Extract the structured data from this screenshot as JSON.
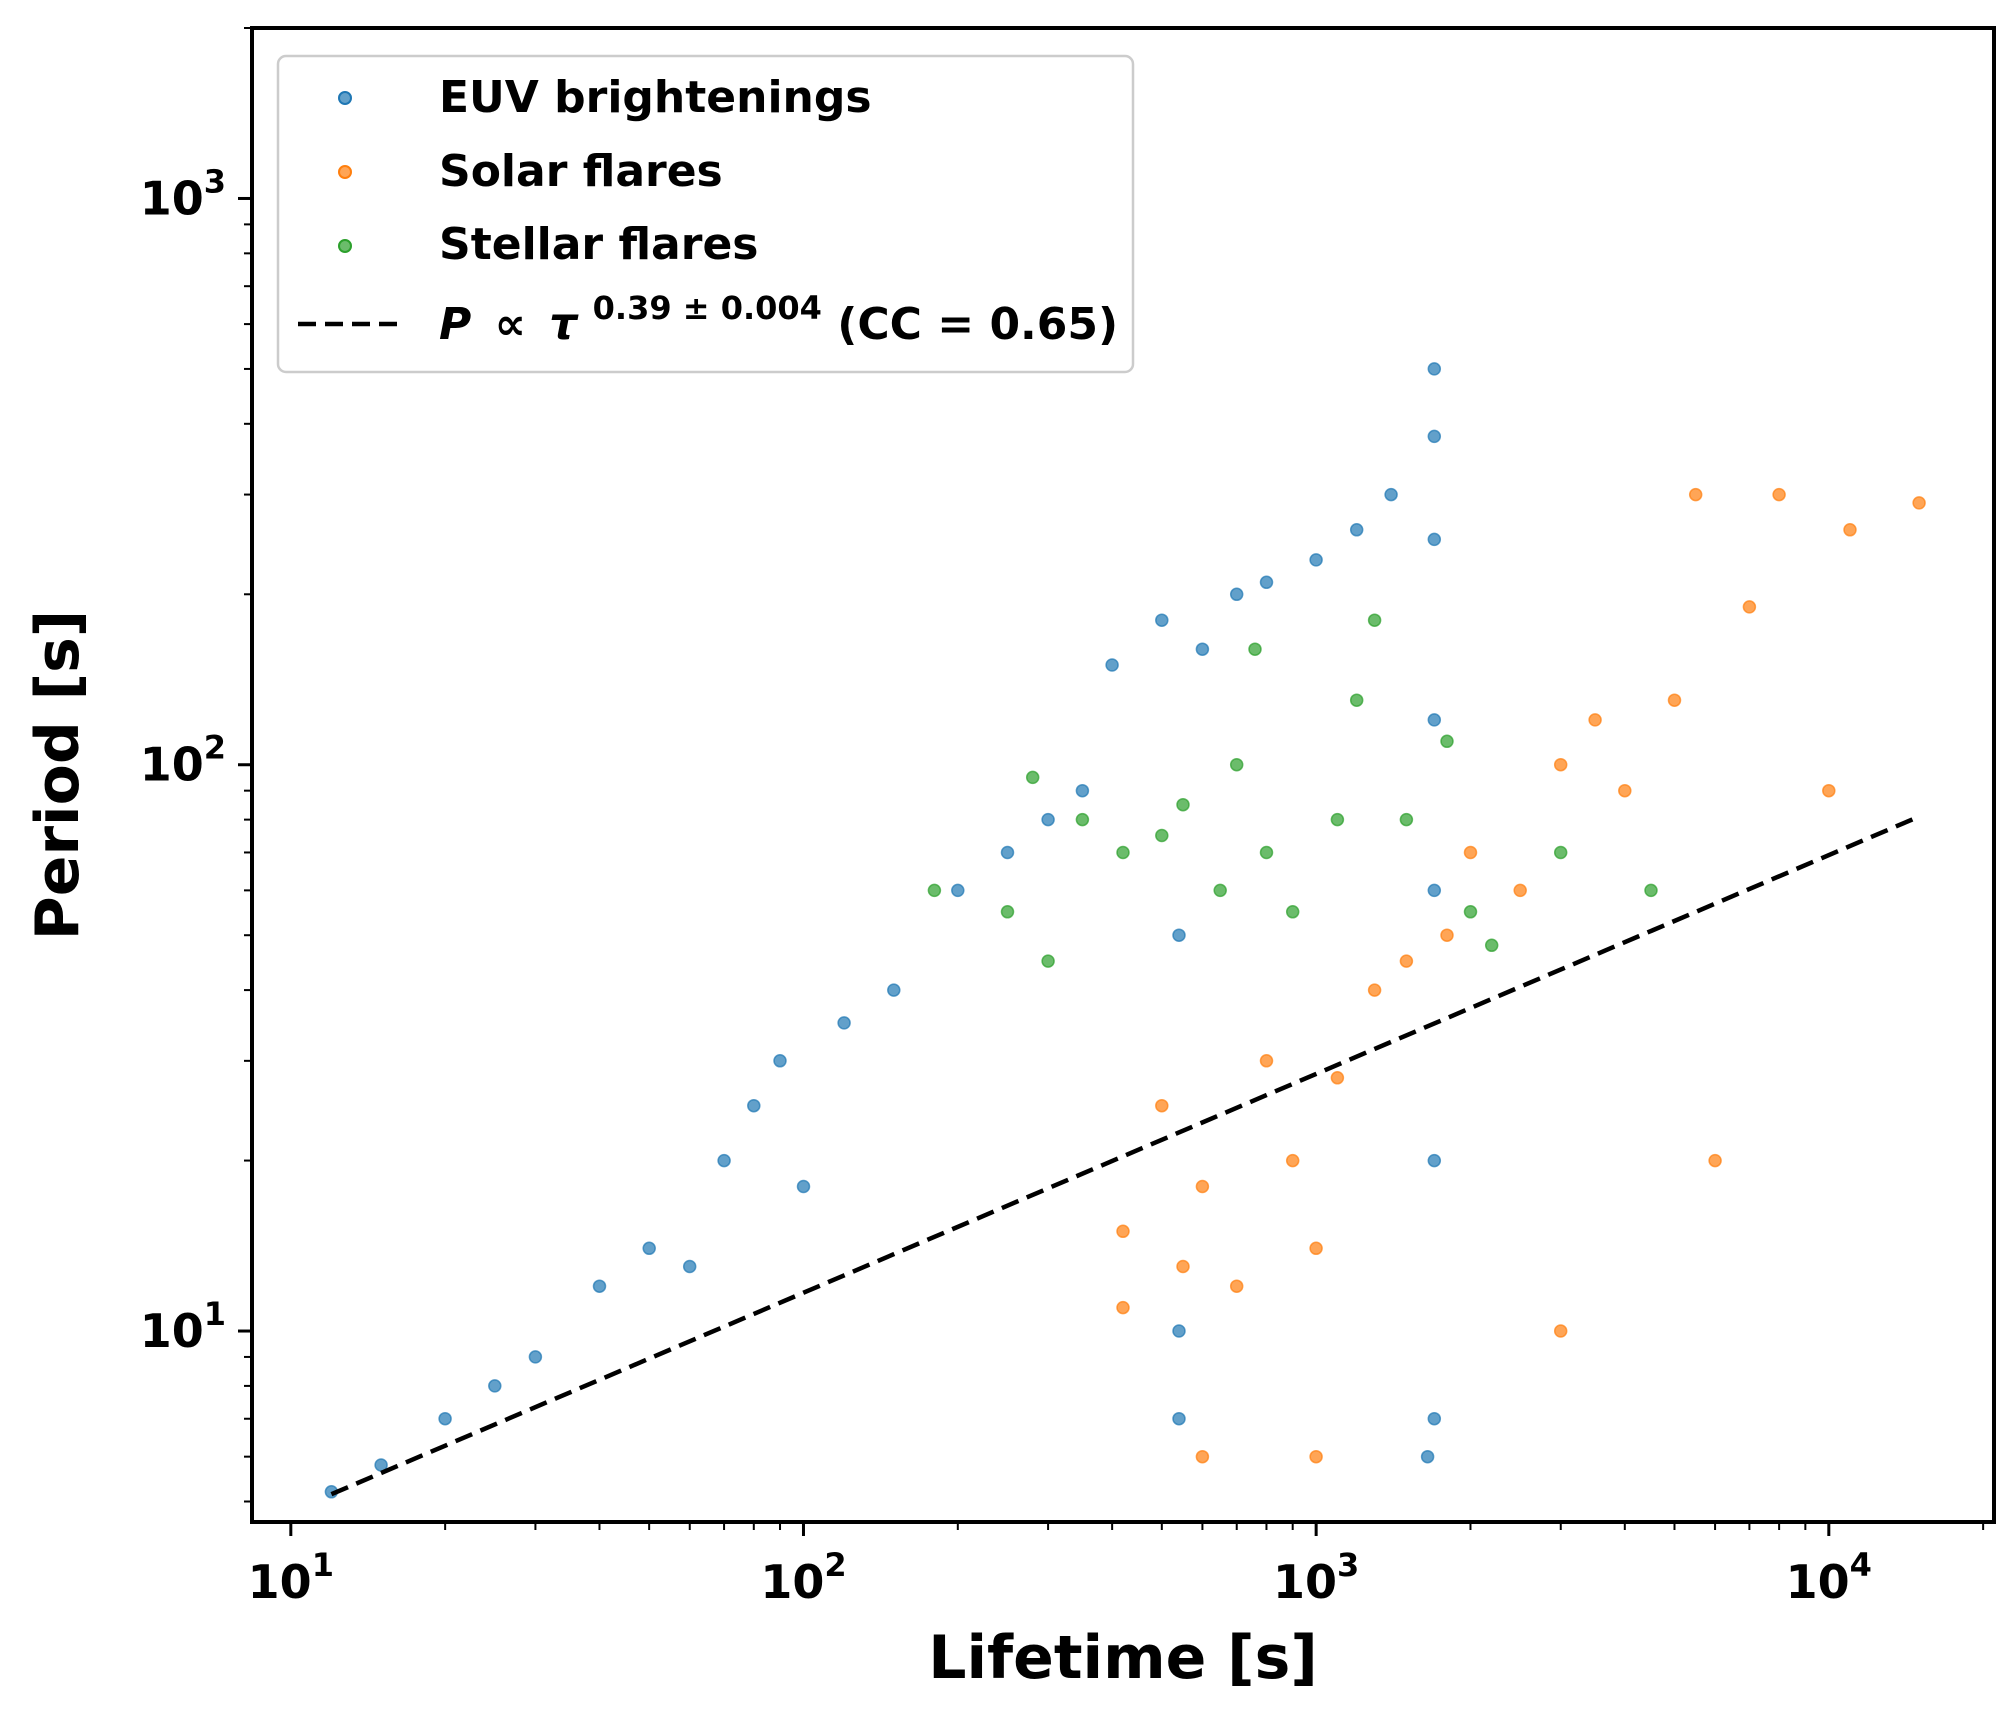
{
  "chart_data": {
    "type": "scatter",
    "title": "",
    "xlabel": "Lifetime [s]",
    "ylabel": "Period [s]",
    "xscale": "log",
    "yscale": "log",
    "xlim": [
      8.4,
      21000
    ],
    "ylim": [
      4.6,
      2000
    ],
    "xticks": [
      {
        "base": "10",
        "exp": "1",
        "value": 10
      },
      {
        "base": "10",
        "exp": "2",
        "value": 100
      },
      {
        "base": "10",
        "exp": "3",
        "value": 1000
      },
      {
        "base": "10",
        "exp": "4",
        "value": 10000
      }
    ],
    "yticks": [
      {
        "base": "10",
        "exp": "1",
        "value": 10
      },
      {
        "base": "10",
        "exp": "2",
        "value": 100
      },
      {
        "base": "10",
        "exp": "3",
        "value": 1000
      }
    ],
    "grid": false,
    "legend_position": "top-left",
    "series": [
      {
        "name": "EUV brightenings",
        "color": "#1f77b4",
        "alpha": 0.7,
        "values": [
          [
            12,
            5.2
          ],
          [
            15,
            5.8
          ],
          [
            20,
            7
          ],
          [
            25,
            8
          ],
          [
            30,
            9
          ],
          [
            40,
            12
          ],
          [
            50,
            14
          ],
          [
            60,
            13
          ],
          [
            70,
            20
          ],
          [
            80,
            25
          ],
          [
            90,
            30
          ],
          [
            100,
            18
          ],
          [
            120,
            35
          ],
          [
            150,
            40
          ],
          [
            200,
            60
          ],
          [
            250,
            70
          ],
          [
            300,
            80
          ],
          [
            350,
            90
          ],
          [
            400,
            150
          ],
          [
            500,
            180
          ],
          [
            600,
            160
          ],
          [
            700,
            200
          ],
          [
            800,
            210
          ],
          [
            1000,
            230
          ],
          [
            1200,
            260
          ],
          [
            1400,
            300
          ],
          [
            1700,
            500
          ],
          [
            1700,
            380
          ],
          [
            1700,
            250
          ],
          [
            1700,
            120
          ],
          [
            1700,
            60
          ],
          [
            1700,
            20
          ],
          [
            1700,
            7
          ],
          [
            540,
            50
          ],
          [
            540,
            10
          ],
          [
            540,
            7
          ],
          [
            1650,
            6
          ]
        ]
      },
      {
        "name": "Solar flares",
        "color": "#ff7f0e",
        "alpha": 0.7,
        "values": [
          [
            420,
            15
          ],
          [
            420,
            11
          ],
          [
            500,
            25
          ],
          [
            550,
            13
          ],
          [
            600,
            18
          ],
          [
            700,
            12
          ],
          [
            800,
            30
          ],
          [
            900,
            20
          ],
          [
            1000,
            14
          ],
          [
            1100,
            28
          ],
          [
            1300,
            40
          ],
          [
            1500,
            45
          ],
          [
            1800,
            50
          ],
          [
            2000,
            70
          ],
          [
            2500,
            60
          ],
          [
            3000,
            100
          ],
          [
            3500,
            120
          ],
          [
            4000,
            90
          ],
          [
            5000,
            130
          ],
          [
            5500,
            300
          ],
          [
            7000,
            190
          ],
          [
            8000,
            300
          ],
          [
            11000,
            260
          ],
          [
            15000,
            290
          ],
          [
            10000,
            90
          ],
          [
            6000,
            20
          ],
          [
            3000,
            10
          ],
          [
            1000,
            6
          ],
          [
            600,
            6
          ]
        ]
      },
      {
        "name": "Stellar flares",
        "color": "#2ca02c",
        "alpha": 0.7,
        "values": [
          [
            180,
            60
          ],
          [
            250,
            55
          ],
          [
            300,
            45
          ],
          [
            350,
            80
          ],
          [
            420,
            70
          ],
          [
            500,
            75
          ],
          [
            550,
            85
          ],
          [
            650,
            60
          ],
          [
            700,
            100
          ],
          [
            760,
            160
          ],
          [
            800,
            70
          ],
          [
            900,
            55
          ],
          [
            1100,
            80
          ],
          [
            1200,
            130
          ],
          [
            1300,
            180
          ],
          [
            1500,
            80
          ],
          [
            1800,
            110
          ],
          [
            2000,
            55
          ],
          [
            3000,
            70
          ],
          [
            4500,
            60
          ],
          [
            2200,
            48
          ],
          [
            280,
            95
          ]
        ]
      }
    ],
    "fit": {
      "label": "P ∝ τ^0.39 ± 0.004 (CC = 0.65)",
      "exponent": 0.39,
      "x_range": [
        12,
        15000
      ],
      "y_range": [
        5.15,
        81
      ],
      "color": "#000000",
      "style": "dashed"
    }
  },
  "legend": {
    "items": [
      {
        "label": "EUV brightenings",
        "color": "#1f77b4"
      },
      {
        "label": "Solar flares",
        "color": "#ff7f0e"
      },
      {
        "label": "Stellar flares",
        "color": "#2ca02c"
      }
    ],
    "fit_prefix": "P",
    "fit_propto": "∝",
    "fit_tau": "τ",
    "fit_sup": "0.39 ± 0.004",
    "fit_suffix": "(CC = 0.65)"
  }
}
